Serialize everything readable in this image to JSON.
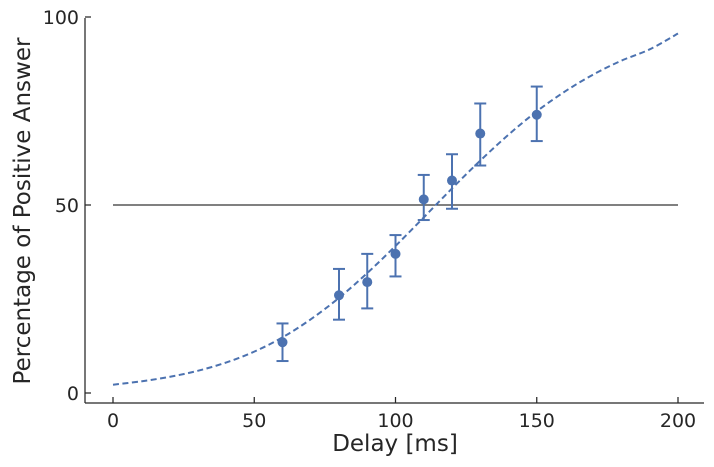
{
  "chart_data": {
    "type": "scatter",
    "title": "",
    "xlabel": "Delay [ms]",
    "ylabel": "Percentage of Positive Answer",
    "xlim": [
      -10,
      210
    ],
    "ylim": [
      -3,
      100
    ],
    "xticks": [
      0,
      50,
      100,
      150,
      200
    ],
    "yticks": [
      0,
      50,
      100
    ],
    "grid": false,
    "colors": {
      "series": "#4c72b0",
      "reference": "#000000",
      "axis": "#262626"
    },
    "points": [
      {
        "x": 60,
        "y": 13.5,
        "err_low": 8.5,
        "err_high": 18.5
      },
      {
        "x": 80,
        "y": 26,
        "err_low": 19.5,
        "err_high": 33
      },
      {
        "x": 90,
        "y": 29.5,
        "err_low": 22.5,
        "err_high": 37
      },
      {
        "x": 100,
        "y": 37,
        "err_low": 31,
        "err_high": 42
      },
      {
        "x": 110,
        "y": 51.5,
        "err_low": 46,
        "err_high": 58
      },
      {
        "x": 120,
        "y": 56.5,
        "err_low": 49,
        "err_high": 63.5
      },
      {
        "x": 130,
        "y": 69,
        "err_low": 60.5,
        "err_high": 77
      },
      {
        "x": 150,
        "y": 74,
        "err_low": 67,
        "err_high": 81.5
      }
    ],
    "fit_curve": {
      "style": "dashed",
      "x": [
        0,
        10,
        20,
        30,
        40,
        50,
        60,
        70,
        80,
        90,
        100,
        110,
        120,
        130,
        140,
        150,
        160,
        170,
        180,
        190,
        200
      ],
      "y": [
        2.2,
        3.1,
        4.3,
        5.9,
        8.1,
        11.0,
        14.8,
        19.6,
        25.3,
        31.9,
        39.1,
        46.7,
        54.4,
        61.8,
        68.7,
        74.9,
        80.2,
        84.7,
        88.4,
        91.4,
        95.6
      ]
    },
    "reference_line": {
      "y": 50,
      "x_range": [
        0,
        200
      ]
    }
  }
}
